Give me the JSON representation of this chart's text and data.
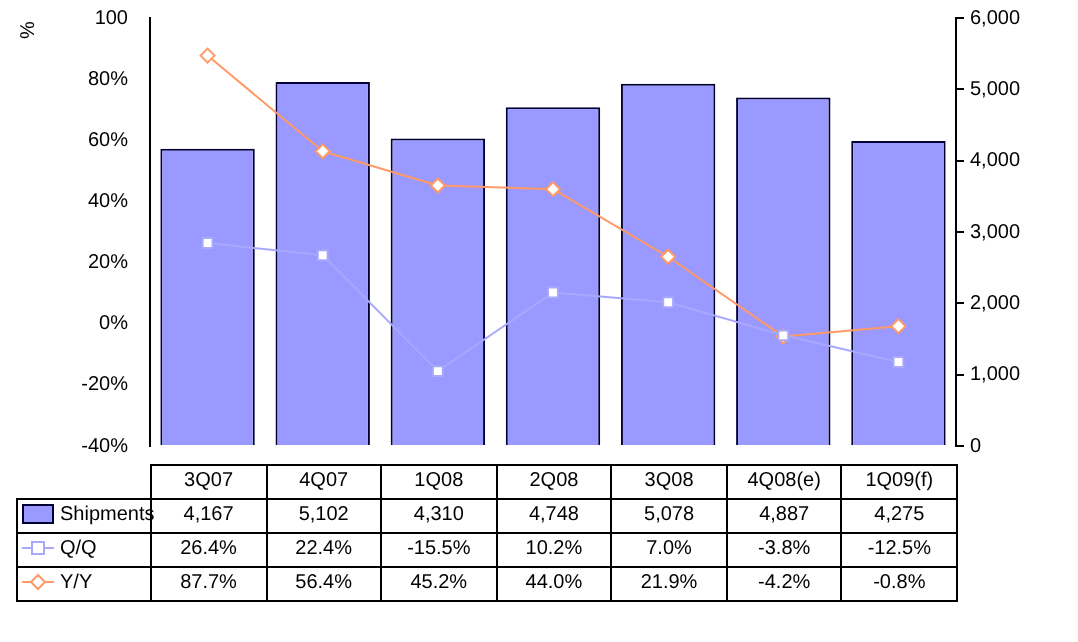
{
  "chart_data": {
    "type": "bar",
    "ylabel": "%",
    "categories": [
      "3Q07",
      "4Q07",
      "1Q08",
      "2Q08",
      "3Q08",
      "4Q08(e)",
      "1Q09(f)"
    ],
    "series": [
      {
        "name": "Shipments",
        "axis": "y2",
        "color": "#9999ff",
        "values": [
          4167,
          5102,
          4310,
          4748,
          5078,
          4887,
          4275
        ],
        "value_labels": [
          "4,167",
          "5,102",
          "4,310",
          "4,748",
          "5,078",
          "4,887",
          "4,275"
        ]
      },
      {
        "name": "Q/Q",
        "type": "line",
        "axis": "y",
        "color": "#a8a8ff",
        "marker": "square",
        "values": [
          26.4,
          22.4,
          -15.5,
          10.2,
          7.0,
          -3.8,
          -12.5
        ],
        "value_labels": [
          "26.4%",
          "22.4%",
          "-15.5%",
          "10.2%",
          "7.0%",
          "-3.8%",
          "-12.5%"
        ]
      },
      {
        "name": "Y/Y",
        "type": "line",
        "axis": "y",
        "color": "#ff9966",
        "marker": "diamond",
        "values": [
          87.7,
          56.4,
          45.2,
          44.0,
          21.9,
          -4.2,
          -0.8
        ],
        "value_labels": [
          "87.7%",
          "56.4%",
          "45.2%",
          "44.0%",
          "21.9%",
          "-4.2%",
          "-0.8%"
        ]
      }
    ],
    "ylim": [
      -40,
      100
    ],
    "yticks": [
      {
        "value": -40,
        "label": "-40%"
      },
      {
        "value": -20,
        "label": "-20%"
      },
      {
        "value": 0,
        "label": "0%"
      },
      {
        "value": 20,
        "label": "20%"
      },
      {
        "value": 40,
        "label": "40%"
      },
      {
        "value": 60,
        "label": "60%"
      },
      {
        "value": 80,
        "label": "80%"
      },
      {
        "value": 100,
        "label": "100"
      }
    ],
    "y2lim": [
      0,
      6000
    ],
    "y2ticks": [
      {
        "value": 0,
        "label": "0"
      },
      {
        "value": 1000,
        "label": "1,000"
      },
      {
        "value": 2000,
        "label": "2,000"
      },
      {
        "value": 3000,
        "label": "3,000"
      },
      {
        "value": 4000,
        "label": "4,000"
      },
      {
        "value": 5000,
        "label": "5,000"
      },
      {
        "value": 6000,
        "label": "6,000"
      }
    ],
    "legend": "bottom"
  }
}
